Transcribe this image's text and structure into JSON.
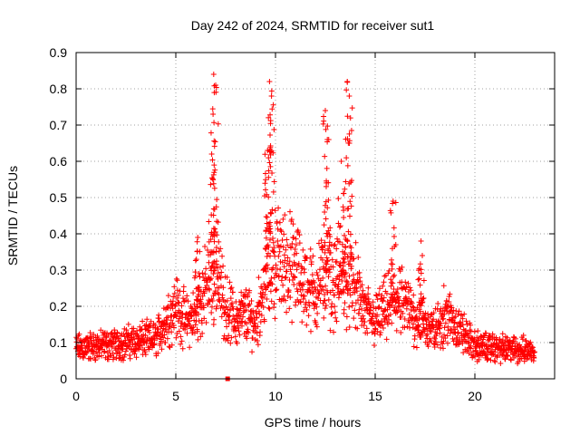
{
  "chart_data": {
    "type": "scatter",
    "title": "Day 242 of 2024, SRMTID for receiver sut1",
    "xlabel": "GPS time / hours",
    "ylabel": "SRMTID / TECUs",
    "xlim": [
      0,
      24
    ],
    "ylim": [
      0,
      0.9
    ],
    "xticks": [
      0,
      5,
      10,
      15,
      20
    ],
    "xtick_labels": [
      "0",
      "5",
      "10",
      "15",
      "20"
    ],
    "yticks": [
      0,
      0.1,
      0.2,
      0.3,
      0.4,
      0.5,
      0.6,
      0.7,
      0.8,
      0.9
    ],
    "ytick_labels": [
      "0",
      "0.1",
      "0.2",
      "0.3",
      "0.4",
      "0.5",
      "0.6",
      "0.7",
      "0.8",
      "0.9"
    ],
    "grid": true,
    "marker": "plus",
    "color": "#ff0000",
    "outlier": {
      "x": 7.6,
      "y": 0.0,
      "marker": "square"
    },
    "profile": [
      [
        0.0,
        0.085
      ],
      [
        1.0,
        0.09
      ],
      [
        2.0,
        0.095
      ],
      [
        3.0,
        0.105
      ],
      [
        4.0,
        0.11
      ],
      [
        4.5,
        0.16
      ],
      [
        5.0,
        0.2
      ],
      [
        5.5,
        0.16
      ],
      [
        6.0,
        0.17
      ],
      [
        6.5,
        0.25
      ],
      [
        7.0,
        0.3
      ],
      [
        7.5,
        0.2
      ],
      [
        8.0,
        0.16
      ],
      [
        8.5,
        0.18
      ],
      [
        9.0,
        0.15
      ],
      [
        9.5,
        0.28
      ],
      [
        10.0,
        0.33
      ],
      [
        10.5,
        0.32
      ],
      [
        11.0,
        0.3
      ],
      [
        11.5,
        0.26
      ],
      [
        12.0,
        0.24
      ],
      [
        12.5,
        0.29
      ],
      [
        13.0,
        0.26
      ],
      [
        13.5,
        0.28
      ],
      [
        14.0,
        0.25
      ],
      [
        14.5,
        0.18
      ],
      [
        15.0,
        0.16
      ],
      [
        15.5,
        0.19
      ],
      [
        16.0,
        0.22
      ],
      [
        16.5,
        0.2
      ],
      [
        17.0,
        0.17
      ],
      [
        17.5,
        0.15
      ],
      [
        18.0,
        0.13
      ],
      [
        18.5,
        0.18
      ],
      [
        19.0,
        0.15
      ],
      [
        19.5,
        0.12
      ],
      [
        20.0,
        0.09
      ],
      [
        21.0,
        0.085
      ],
      [
        22.0,
        0.08
      ],
      [
        23.0,
        0.08
      ]
    ],
    "peaks": [
      {
        "x": 6.9,
        "y": 0.84
      },
      {
        "x": 7.0,
        "y": 0.81
      },
      {
        "x": 6.8,
        "y": 0.62
      },
      {
        "x": 9.7,
        "y": 0.82
      },
      {
        "x": 9.8,
        "y": 0.78
      },
      {
        "x": 9.6,
        "y": 0.63
      },
      {
        "x": 12.5,
        "y": 0.74
      },
      {
        "x": 12.6,
        "y": 0.66
      },
      {
        "x": 13.6,
        "y": 0.82
      },
      {
        "x": 13.7,
        "y": 0.78
      },
      {
        "x": 13.3,
        "y": 0.6
      },
      {
        "x": 15.9,
        "y": 0.49
      },
      {
        "x": 17.3,
        "y": 0.38
      },
      {
        "x": 6.1,
        "y": 0.39
      }
    ]
  }
}
